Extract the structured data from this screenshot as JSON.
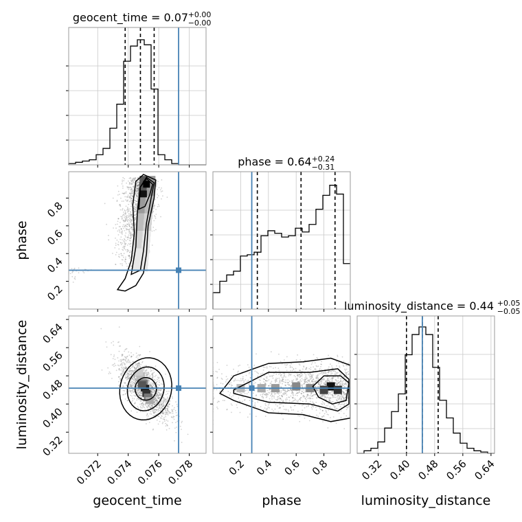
{
  "colors": {
    "truth": "#4682b4",
    "hist": "#000000",
    "grid": "#c8c8c8",
    "scatter": "#7a7a7a"
  },
  "chart_data": {
    "type": "corner",
    "parameters": [
      "geocent_time",
      "phase",
      "luminosity_distance"
    ],
    "truths": {
      "geocent_time": 0.0773,
      "phase": 0.28,
      "luminosity_distance": 0.445
    },
    "titles": [
      {
        "param": "geocent_time",
        "text": "geocent_time = 0.07",
        "plus": "+0.00",
        "minus": "−0.00"
      },
      {
        "param": "phase",
        "text": "phase = 0.64",
        "plus": "+0.24",
        "minus": "−0.31"
      },
      {
        "param": "luminosity_distance",
        "text": "luminosity_distance = 0.44",
        "plus": "+0.05",
        "minus": "−0.05"
      }
    ],
    "ranges": {
      "geocent_time": [
        0.0701,
        0.0791
      ],
      "phase": [
        0.0,
        0.99
      ],
      "luminosity_distance": [
        0.26,
        0.65
      ]
    },
    "ticks": {
      "geocent_time": {
        "values": [
          0.072,
          0.074,
          0.076,
          0.078
        ],
        "labels": [
          "0.072",
          "0.074",
          "0.076",
          "0.078"
        ]
      },
      "phase": {
        "values": [
          0.2,
          0.4,
          0.6,
          0.8
        ],
        "labels": [
          "0.2",
          "0.4",
          "0.6",
          "0.8"
        ]
      },
      "luminosity_distance": {
        "values": [
          0.32,
          0.4,
          0.48,
          0.56,
          0.64
        ],
        "labels": [
          "0.32",
          "0.40",
          "0.48",
          "0.56",
          "0.64"
        ]
      }
    },
    "quantiles": {
      "geocent_time": [
        0.0738,
        0.0748,
        0.0757
      ],
      "phase": [
        0.32,
        0.635,
        0.88
      ],
      "luminosity_distance": [
        0.4,
        0.445,
        0.49
      ]
    },
    "histograms": {
      "geocent_time": {
        "bins": 20,
        "counts": [
          0.01,
          0.02,
          0.03,
          0.04,
          0.08,
          0.13,
          0.29,
          0.48,
          0.82,
          0.94,
          0.99,
          0.95,
          0.6,
          0.08,
          0.04,
          0.01,
          0,
          0,
          0,
          0
        ]
      },
      "phase": {
        "bins": 20,
        "counts": [
          0.13,
          0.22,
          0.27,
          0.3,
          0.42,
          0.43,
          0.45,
          0.58,
          0.62,
          0.6,
          0.57,
          0.58,
          0.64,
          0.61,
          0.67,
          0.79,
          0.9,
          0.98,
          0.91,
          0.36
        ]
      },
      "luminosity_distance": {
        "bins": 20,
        "counts": [
          0,
          0.02,
          0.04,
          0.09,
          0.2,
          0.33,
          0.47,
          0.78,
          0.94,
          1.0,
          0.94,
          0.68,
          0.42,
          0.28,
          0.16,
          0.08,
          0.04,
          0.02,
          0.01,
          0
        ]
      }
    },
    "xlabels": [
      "geocent_time",
      "phase",
      "luminosity_distance"
    ],
    "ylabels": [
      "phase",
      "luminosity_distance"
    ],
    "grid": true
  }
}
